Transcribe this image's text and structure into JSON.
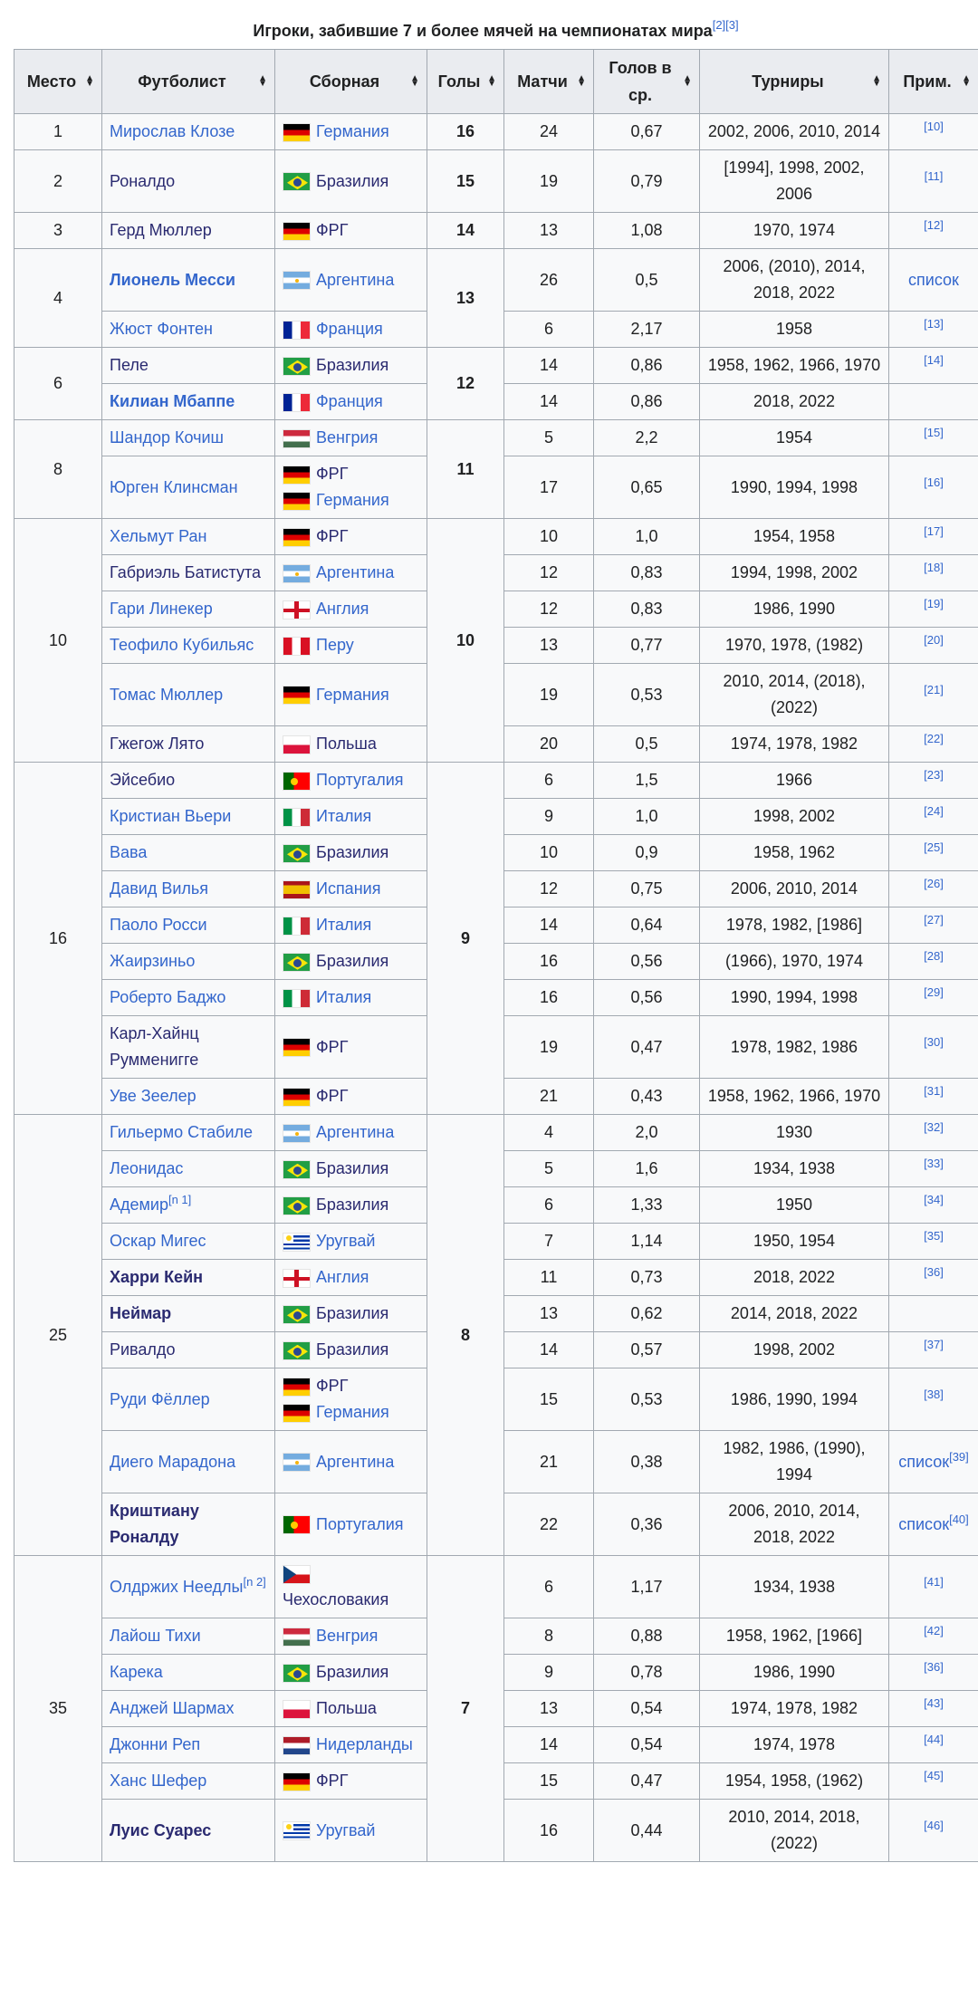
{
  "caption": {
    "title": "Игроки, забившие 7 и более мячей на чемпионатах мира",
    "refs": "[2][3]"
  },
  "headers": [
    "Место",
    "Футболист",
    "Сборная",
    "Голы",
    "Матчи",
    "Голов в ср.",
    "Турниры",
    "Прим."
  ],
  "sort_icon": "sort-arrows-icon",
  "colors": {
    "link": "#3366cc",
    "visited_link": "#2a2a70",
    "header_bg": "#eaecf0",
    "cell_bg": "#f8f9fa",
    "border": "#a2a9b1"
  },
  "groups": [
    {
      "place": "1",
      "goals": "16",
      "players": [
        {
          "name": "Мирослав Клозе",
          "visited": false,
          "bold": false,
          "countries": [
            {
              "flag": "de",
              "name": "Германия"
            }
          ],
          "matches": "24",
          "avg": "0,67",
          "tournaments": "2002, 2006, 2010, 2014",
          "note": "",
          "ref": "[10]"
        }
      ]
    },
    {
      "place": "2",
      "goals": "15",
      "players": [
        {
          "name": "Роналдо",
          "visited": true,
          "bold": false,
          "countries": [
            {
              "flag": "br",
              "name": "Бразилия"
            }
          ],
          "matches": "19",
          "avg": "0,79",
          "tournaments": "[1994], 1998, 2002, 2006",
          "note": "",
          "ref": "[11]"
        }
      ]
    },
    {
      "place": "3",
      "goals": "14",
      "players": [
        {
          "name": "Герд Мюллер",
          "visited": true,
          "bold": false,
          "countries": [
            {
              "flag": "de",
              "name": "ФРГ"
            }
          ],
          "matches": "13",
          "avg": "1,08",
          "tournaments": "1970, 1974",
          "note": "",
          "ref": "[12]"
        }
      ]
    },
    {
      "place": "4",
      "goals": "13",
      "players": [
        {
          "name": "Лионель Месси",
          "visited": false,
          "bold": true,
          "countries": [
            {
              "flag": "ar",
              "name": "Аргентина"
            }
          ],
          "matches": "26",
          "avg": "0,5",
          "tournaments": "2006, (2010), 2014, 2018, 2022",
          "note": "список",
          "ref": ""
        },
        {
          "name": "Жюст Фонтен",
          "visited": false,
          "bold": false,
          "countries": [
            {
              "flag": "fr",
              "name": "Франция"
            }
          ],
          "matches": "6",
          "avg": "2,17",
          "tournaments": "1958",
          "note": "",
          "ref": "[13]"
        }
      ]
    },
    {
      "place": "6",
      "goals": "12",
      "players": [
        {
          "name": "Пеле",
          "visited": true,
          "bold": false,
          "countries": [
            {
              "flag": "br",
              "name": "Бразилия"
            }
          ],
          "matches": "14",
          "avg": "0,86",
          "tournaments": "1958, 1962, 1966, 1970",
          "note": "",
          "ref": "[14]"
        },
        {
          "name": "Килиан Мбаппе",
          "visited": false,
          "bold": true,
          "countries": [
            {
              "flag": "fr",
              "name": "Франция"
            }
          ],
          "matches": "14",
          "avg": "0,86",
          "tournaments": "2018, 2022",
          "note": "",
          "ref": ""
        }
      ]
    },
    {
      "place": "8",
      "goals": "11",
      "players": [
        {
          "name": "Шандор Кочиш",
          "visited": false,
          "bold": false,
          "countries": [
            {
              "flag": "hu",
              "name": "Венгрия"
            }
          ],
          "matches": "5",
          "avg": "2,2",
          "tournaments": "1954",
          "note": "",
          "ref": "[15]"
        },
        {
          "name": "Юрген Клинсман",
          "visited": false,
          "bold": false,
          "countries": [
            {
              "flag": "de",
              "name": "ФРГ"
            },
            {
              "flag": "de",
              "name": "Германия"
            }
          ],
          "matches": "17",
          "avg": "0,65",
          "tournaments": "1990, 1994, 1998",
          "note": "",
          "ref": "[16]"
        }
      ]
    },
    {
      "place": "10",
      "goals": "10",
      "players": [
        {
          "name": "Хельмут Ран",
          "visited": false,
          "bold": false,
          "countries": [
            {
              "flag": "de",
              "name": "ФРГ"
            }
          ],
          "matches": "10",
          "avg": "1,0",
          "tournaments": "1954, 1958",
          "note": "",
          "ref": "[17]"
        },
        {
          "name": "Габриэль Батистута",
          "visited": true,
          "bold": false,
          "countries": [
            {
              "flag": "ar",
              "name": "Аргентина"
            }
          ],
          "matches": "12",
          "avg": "0,83",
          "tournaments": "1994, 1998, 2002",
          "note": "",
          "ref": "[18]"
        },
        {
          "name": "Гари Линекер",
          "visited": false,
          "bold": false,
          "countries": [
            {
              "flag": "en",
              "name": "Англия"
            }
          ],
          "matches": "12",
          "avg": "0,83",
          "tournaments": "1986, 1990",
          "note": "",
          "ref": "[19]"
        },
        {
          "name": "Теофило Кубильяс",
          "visited": false,
          "bold": false,
          "countries": [
            {
              "flag": "pe",
              "name": "Перу"
            }
          ],
          "matches": "13",
          "avg": "0,77",
          "tournaments": "1970, 1978, (1982)",
          "note": "",
          "ref": "[20]"
        },
        {
          "name": "Томас Мюллер",
          "visited": false,
          "bold": false,
          "countries": [
            {
              "flag": "de",
              "name": "Германия"
            }
          ],
          "matches": "19",
          "avg": "0,53",
          "tournaments": "2010, 2014, (2018), (2022)",
          "note": "",
          "ref": "[21]"
        },
        {
          "name": "Гжегож Лято",
          "visited": true,
          "bold": false,
          "countries": [
            {
              "flag": "pl",
              "name": "Польша"
            }
          ],
          "matches": "20",
          "avg": "0,5",
          "tournaments": "1974, 1978, 1982",
          "note": "",
          "ref": "[22]"
        }
      ]
    },
    {
      "place": "16",
      "goals": "9",
      "players": [
        {
          "name": "Эйсебио",
          "visited": true,
          "bold": false,
          "countries": [
            {
              "flag": "pt",
              "name": "Португалия"
            }
          ],
          "matches": "6",
          "avg": "1,5",
          "tournaments": "1966",
          "note": "",
          "ref": "[23]"
        },
        {
          "name": "Кристиан Вьери",
          "visited": false,
          "bold": false,
          "countries": [
            {
              "flag": "it",
              "name": "Италия"
            }
          ],
          "matches": "9",
          "avg": "1,0",
          "tournaments": "1998, 2002",
          "note": "",
          "ref": "[24]"
        },
        {
          "name": "Вава",
          "visited": false,
          "bold": false,
          "countries": [
            {
              "flag": "br",
              "name": "Бразилия"
            }
          ],
          "matches": "10",
          "avg": "0,9",
          "tournaments": "1958, 1962",
          "note": "",
          "ref": "[25]"
        },
        {
          "name": "Давид Вилья",
          "visited": false,
          "bold": false,
          "countries": [
            {
              "flag": "es",
              "name": "Испания"
            }
          ],
          "matches": "12",
          "avg": "0,75",
          "tournaments": "2006, 2010, 2014",
          "note": "",
          "ref": "[26]"
        },
        {
          "name": "Паоло Росси",
          "visited": false,
          "bold": false,
          "countries": [
            {
              "flag": "it",
              "name": "Италия"
            }
          ],
          "matches": "14",
          "avg": "0,64",
          "tournaments": "1978, 1982, [1986]",
          "note": "",
          "ref": "[27]"
        },
        {
          "name": "Жаирзиньо",
          "visited": false,
          "bold": false,
          "countries": [
            {
              "flag": "br",
              "name": "Бразилия"
            }
          ],
          "matches": "16",
          "avg": "0,56",
          "tournaments": "(1966), 1970, 1974",
          "note": "",
          "ref": "[28]"
        },
        {
          "name": "Роберто Баджо",
          "visited": false,
          "bold": false,
          "countries": [
            {
              "flag": "it",
              "name": "Италия"
            }
          ],
          "matches": "16",
          "avg": "0,56",
          "tournaments": "1990, 1994, 1998",
          "note": "",
          "ref": "[29]"
        },
        {
          "name": "Карл-Хайнц Румменигге",
          "visited": true,
          "bold": false,
          "countries": [
            {
              "flag": "de",
              "name": "ФРГ"
            }
          ],
          "matches": "19",
          "avg": "0,47",
          "tournaments": "1978, 1982, 1986",
          "note": "",
          "ref": "[30]"
        },
        {
          "name": "Уве Зеелер",
          "visited": false,
          "bold": false,
          "countries": [
            {
              "flag": "de",
              "name": "ФРГ"
            }
          ],
          "matches": "21",
          "avg": "0,43",
          "tournaments": "1958, 1962, 1966, 1970",
          "note": "",
          "ref": "[31]"
        }
      ]
    },
    {
      "place": "25",
      "goals": "8",
      "players": [
        {
          "name": "Гильермо Стабиле",
          "visited": false,
          "bold": false,
          "countries": [
            {
              "flag": "ar",
              "name": "Аргентина"
            }
          ],
          "matches": "4",
          "avg": "2,0",
          "tournaments": "1930",
          "note": "",
          "ref": "[32]"
        },
        {
          "name": "Леонидас",
          "visited": false,
          "bold": false,
          "countries": [
            {
              "flag": "br",
              "name": "Бразилия"
            }
          ],
          "matches": "5",
          "avg": "1,6",
          "tournaments": "1934, 1938",
          "note": "",
          "ref": "[33]"
        },
        {
          "name": "Адемир",
          "name_ref": "[n 1]",
          "visited": false,
          "bold": false,
          "countries": [
            {
              "flag": "br",
              "name": "Бразилия"
            }
          ],
          "matches": "6",
          "avg": "1,33",
          "tournaments": "1950",
          "note": "",
          "ref": "[34]"
        },
        {
          "name": "Оскар Мигес",
          "visited": false,
          "bold": false,
          "countries": [
            {
              "flag": "uy",
              "name": "Уругвай"
            }
          ],
          "matches": "7",
          "avg": "1,14",
          "tournaments": "1950, 1954",
          "note": "",
          "ref": "[35]"
        },
        {
          "name": "Харри Кейн",
          "visited": true,
          "bold": true,
          "countries": [
            {
              "flag": "en",
              "name": "Англия"
            }
          ],
          "matches": "11",
          "avg": "0,73",
          "tournaments": "2018, 2022",
          "note": "",
          "ref": "[36]"
        },
        {
          "name": "Неймар",
          "visited": true,
          "bold": true,
          "countries": [
            {
              "flag": "br",
              "name": "Бразилия"
            }
          ],
          "matches": "13",
          "avg": "0,62",
          "tournaments": "2014, 2018, 2022",
          "note": "",
          "ref": ""
        },
        {
          "name": "Ривалдо",
          "visited": true,
          "bold": false,
          "countries": [
            {
              "flag": "br",
              "name": "Бразилия"
            }
          ],
          "matches": "14",
          "avg": "0,57",
          "tournaments": "1998, 2002",
          "note": "",
          "ref": "[37]"
        },
        {
          "name": "Руди Фёллер",
          "visited": false,
          "bold": false,
          "countries": [
            {
              "flag": "de",
              "name": "ФРГ"
            },
            {
              "flag": "de",
              "name": "Германия"
            }
          ],
          "matches": "15",
          "avg": "0,53",
          "tournaments": "1986, 1990, 1994",
          "note": "",
          "ref": "[38]"
        },
        {
          "name": "Диего Марадона",
          "visited": false,
          "bold": false,
          "countries": [
            {
              "flag": "ar",
              "name": "Аргентина"
            }
          ],
          "matches": "21",
          "avg": "0,38",
          "tournaments": "1982, 1986, (1990), 1994",
          "note": "список",
          "ref": "[39]"
        },
        {
          "name": "Криштиану Роналду",
          "visited": true,
          "bold": true,
          "countries": [
            {
              "flag": "pt",
              "name": "Португалия"
            }
          ],
          "matches": "22",
          "avg": "0,36",
          "tournaments": "2006, 2010, 2014, 2018, 2022",
          "note": "список",
          "ref": "[40]"
        }
      ]
    },
    {
      "place": "35",
      "goals": "7",
      "players": [
        {
          "name": "Олдржих Неедлы",
          "name_ref": "[n 2]",
          "visited": false,
          "bold": false,
          "countries": [
            {
              "flag": "cz",
              "name": "Чехословакия"
            }
          ],
          "matches": "6",
          "avg": "1,17",
          "tournaments": "1934, 1938",
          "note": "",
          "ref": "[41]"
        },
        {
          "name": "Лайош Тихи",
          "visited": false,
          "bold": false,
          "countries": [
            {
              "flag": "hu",
              "name": "Венгрия"
            }
          ],
          "matches": "8",
          "avg": "0,88",
          "tournaments": "1958, 1962, [1966]",
          "note": "",
          "ref": "[42]"
        },
        {
          "name": "Карека",
          "visited": false,
          "bold": false,
          "countries": [
            {
              "flag": "br",
              "name": "Бразилия"
            }
          ],
          "matches": "9",
          "avg": "0,78",
          "tournaments": "1986, 1990",
          "note": "",
          "ref": "[36]"
        },
        {
          "name": "Анджей Шармах",
          "visited": false,
          "bold": false,
          "countries": [
            {
              "flag": "pl",
              "name": "Польша"
            }
          ],
          "matches": "13",
          "avg": "0,54",
          "tournaments": "1974, 1978, 1982",
          "note": "",
          "ref": "[43]"
        },
        {
          "name": "Джонни Реп",
          "visited": false,
          "bold": false,
          "countries": [
            {
              "flag": "nl",
              "name": "Нидерланды"
            }
          ],
          "matches": "14",
          "avg": "0,54",
          "tournaments": "1974, 1978",
          "note": "",
          "ref": "[44]"
        },
        {
          "name": "Ханс Шефер",
          "visited": false,
          "bold": false,
          "countries": [
            {
              "flag": "de",
              "name": "ФРГ"
            }
          ],
          "matches": "15",
          "avg": "0,47",
          "tournaments": "1954, 1958, (1962)",
          "note": "",
          "ref": "[45]"
        },
        {
          "name": "Луис Суарес",
          "visited": true,
          "bold": true,
          "countries": [
            {
              "flag": "uy",
              "name": "Уругвай"
            }
          ],
          "matches": "16",
          "avg": "0,44",
          "tournaments": "2010, 2014, 2018, (2022)",
          "note": "",
          "ref": "[46]"
        }
      ]
    }
  ]
}
